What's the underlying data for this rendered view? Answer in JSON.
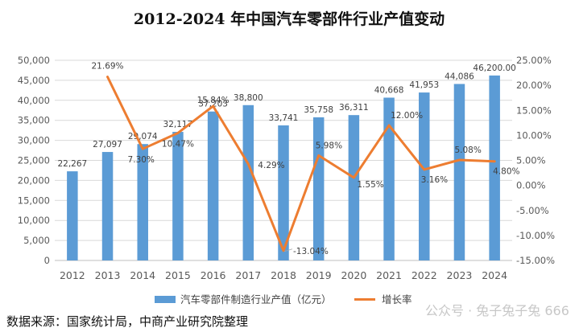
{
  "chart_data": {
    "type": "bar",
    "title": "2012-2024 年中国汽车零部件行业产值变动",
    "categories": [
      "2012",
      "2013",
      "2014",
      "2015",
      "2016",
      "2017",
      "2018",
      "2019",
      "2020",
      "2021",
      "2022",
      "2023",
      "2024"
    ],
    "series": [
      {
        "name": "汽车零部件制造行业产值（亿元）",
        "kind": "bar",
        "axis": "left",
        "color": "#5B9BD5",
        "values": [
          22267,
          27097,
          29074,
          32117,
          37203,
          38800,
          33741,
          35758,
          36311,
          40668,
          41953,
          44086,
          46200
        ],
        "labels": [
          "22,267",
          "27,097",
          "29,074",
          "32,117",
          "37,203",
          "38,800",
          "33,741",
          "35,758",
          "36,311",
          "40,668",
          "41,953",
          "44,086",
          "46,200.00"
        ]
      },
      {
        "name": "增长率",
        "kind": "line",
        "axis": "right",
        "color": "#ED7D31",
        "values": [
          null,
          21.69,
          7.3,
          10.47,
          15.84,
          4.29,
          -13.04,
          5.98,
          1.55,
          12.0,
          3.16,
          5.08,
          4.8
        ],
        "labels": [
          null,
          "21.69%",
          "7.30%",
          "10.47%",
          "15.84%",
          "4.29%",
          "-13.04%",
          "5.98%",
          "1.55%",
          "12.00%",
          "3.16%",
          "5.08%",
          "4.80%"
        ]
      }
    ],
    "y_left": {
      "min": 0,
      "max": 50000,
      "step": 5000,
      "ticks": [
        "0",
        "5,000",
        "10,000",
        "15,000",
        "20,000",
        "25,000",
        "30,000",
        "35,000",
        "40,000",
        "45,000",
        "50,000"
      ]
    },
    "y_right": {
      "min": -15,
      "max": 25,
      "step": 5,
      "ticks": [
        "-15.00%",
        "-10.00%",
        "-5.00%",
        "0.00%",
        "5.00%",
        "10.00%",
        "15.00%",
        "20.00%",
        "25.00%"
      ]
    },
    "grid": true,
    "legend_position": "bottom"
  },
  "source_note": "数据来源：国家统计局，中商产业研究院整理",
  "watermark": "公众号 · 兔子兔子兔 666",
  "colors": {
    "bar": "#5B9BD5",
    "line": "#ED7D31",
    "grid": "#D9D9D9",
    "text": "#595959"
  }
}
